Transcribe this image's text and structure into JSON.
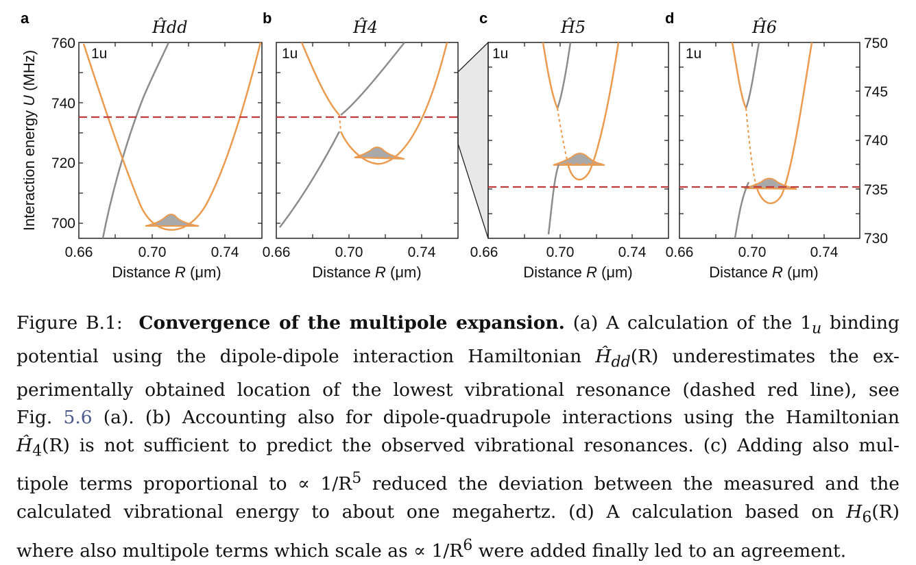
{
  "panels": [
    {
      "letter": "a",
      "title": "Ĥdd",
      "tag": "1u",
      "ylim": [
        694,
        760
      ],
      "xlim": [
        0.66,
        0.76
      ],
      "xticks": [
        "0.66",
        "0.70",
        "0.74"
      ],
      "resonance_MHz": 735.5
    },
    {
      "letter": "b",
      "title": "Ĥ4",
      "tag": "1u",
      "ylim": [
        694,
        760
      ],
      "xlim": [
        0.66,
        0.76
      ],
      "xticks": [
        "0.66",
        "0.70",
        "0.74"
      ],
      "resonance_MHz": 735.5
    },
    {
      "letter": "c",
      "title": "Ĥ5",
      "tag": "1u",
      "ylim": [
        730,
        750
      ],
      "xlim": [
        0.66,
        0.76
      ],
      "xticks": [
        "0.66",
        "0.70",
        "0.74"
      ],
      "resonance_MHz": 735.3
    },
    {
      "letter": "d",
      "title": "Ĥ6",
      "tag": "1u",
      "ylim": [
        730,
        750
      ],
      "xlim": [
        0.66,
        0.76
      ],
      "xticks": [
        "0.66",
        "0.70",
        "0.74"
      ],
      "resonance_MHz": 735.3
    }
  ],
  "left_axis": {
    "label_pre": "Interaction energy ",
    "label_var": "U",
    "label_post": " (MHz)",
    "ticks": [
      "760",
      "740",
      "720",
      "700"
    ]
  },
  "right_axis": {
    "ticks": [
      "750",
      "745",
      "740",
      "735",
      "730"
    ]
  },
  "x_axis": {
    "label_pre": "Distance ",
    "label_var": "R",
    "label_post": " (μm)"
  },
  "colors": {
    "potential": "#ec9a4e",
    "other_curve": "#8c8c8c",
    "resonance": "#c0393b",
    "wavefunction_fill": "#a9a9a9",
    "zoom": "#e8e8e8"
  },
  "caption": {
    "fig_label": "Figure B.1:",
    "bold_title": "Convergence of the multipole expansion.",
    "a1": "(a) A calculation of the 1",
    "a_sub": "u",
    "a2": " binding",
    "l2a": "potential using the dipole-dipole interaction Hamiltonian ",
    "l2h": "Ĥ",
    "l2sub": "dd",
    "l2b": "(R) underestimates the ex-",
    "l3": "perimentally obtained location of the lowest vibrational resonance (dashed red line), see",
    "l4a": "Fig. ",
    "l4ref": "5.6",
    "l4b": " (a). (b) Accounting also for dipole-quadrupole interactions using the Hamiltonian",
    "l5h": "Ĥ",
    "l5sub": "4",
    "l5a": "(R) is not sufficient to predict the observed vibrational resonances. (c) Adding also mul-",
    "l6a": "tipole terms proportional to ∝ 1/R",
    "l6sup": "5",
    "l6b": " reduced the deviation between the measured and the",
    "l7a": "calculated vibrational energy to about one megahertz. (d) A calculation based on ",
    "l7h": "H",
    "l7sub": "6",
    "l7b": "(R)",
    "l8a": "where also multipole terms which scale as ∝ 1/R",
    "l8sup": "6",
    "l8b": " were added finally led to an agreement."
  }
}
